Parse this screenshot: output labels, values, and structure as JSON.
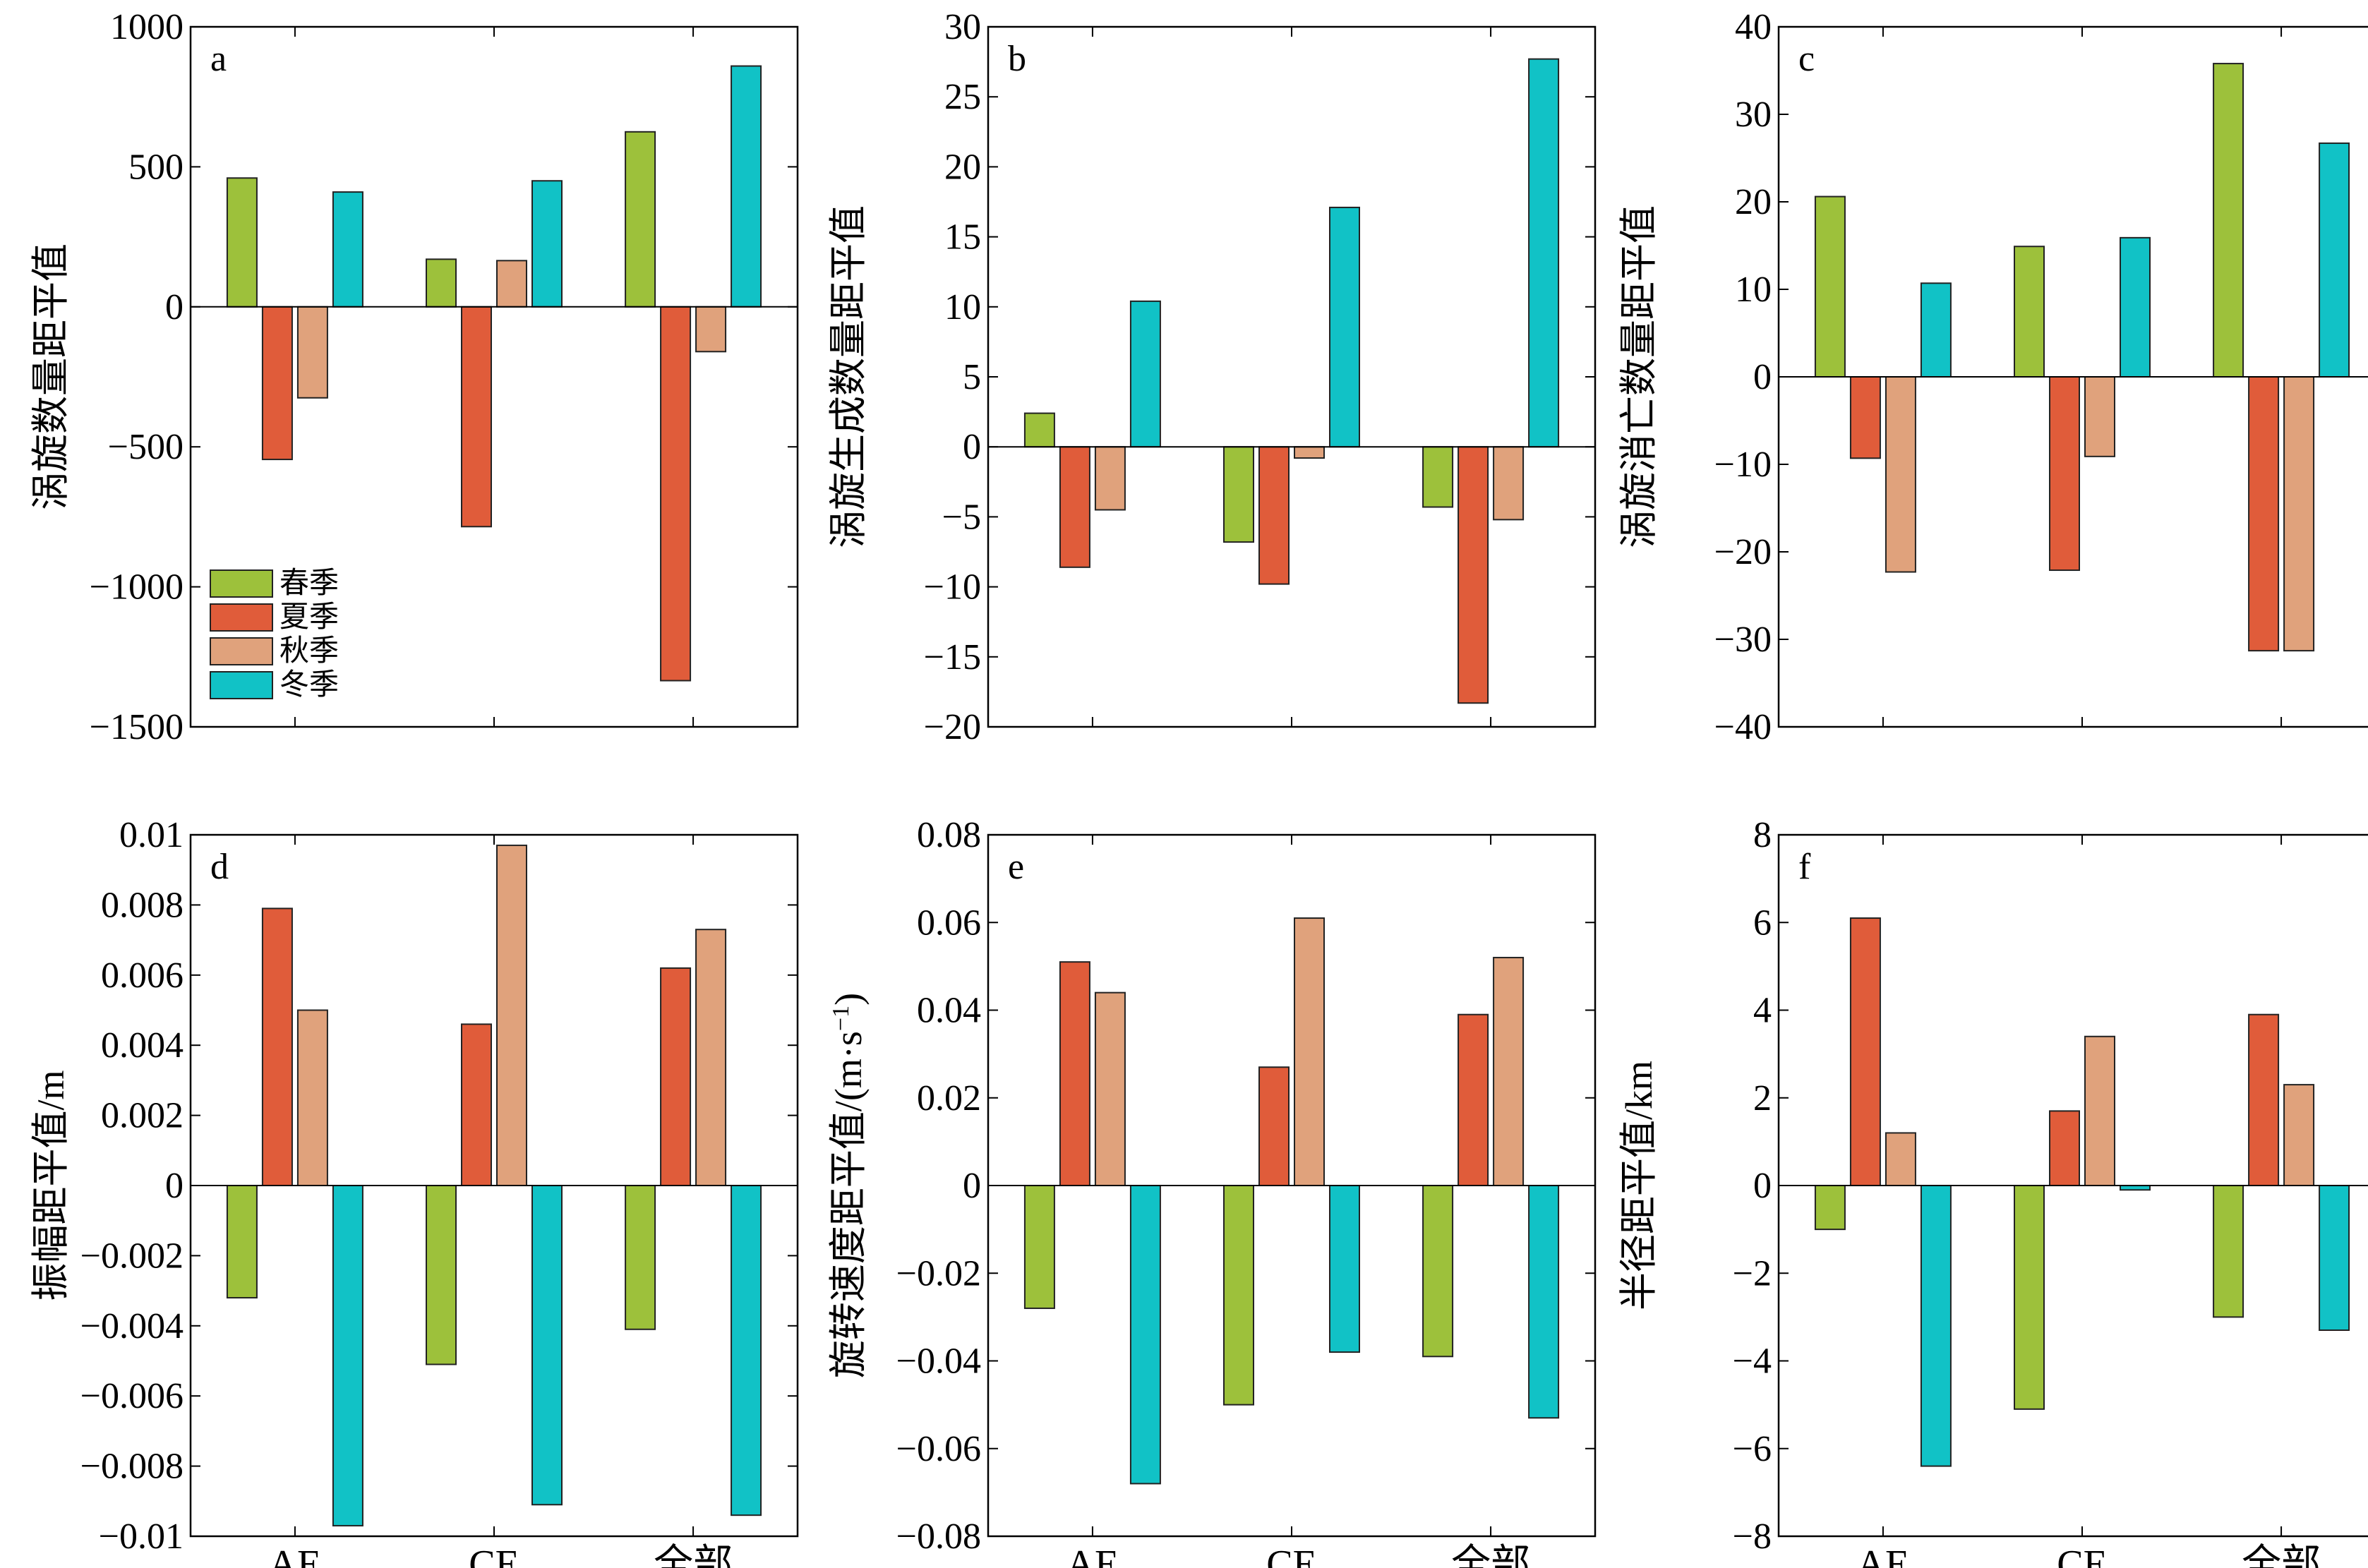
{
  "series_colors": {
    "春季": "#9dc13b",
    "夏季": "#e05c3a",
    "秋季": "#e0a27c",
    "冬季": "#11c2c6"
  },
  "categories": [
    "AE",
    "CE",
    "全部"
  ],
  "legend": [
    "春季",
    "夏季",
    "秋季",
    "冬季"
  ],
  "chart_data": [
    {
      "type": "bar",
      "letter": "a",
      "ylabel": "涡旋数量距平值",
      "ylim": [
        -1500,
        1000
      ],
      "yticks": [
        -1500,
        -1000,
        -500,
        0,
        500,
        1000
      ],
      "ytick_labels": [
        "−1500",
        "−1000",
        "−500",
        "0",
        "500",
        "1000"
      ],
      "categories": [
        "AE",
        "CE",
        "全部"
      ],
      "show_xlabels": false,
      "legend": true,
      "series": [
        {
          "name": "春季",
          "values": [
            460,
            170,
            625
          ]
        },
        {
          "name": "夏季",
          "values": [
            -545,
            -785,
            -1335
          ]
        },
        {
          "name": "秋季",
          "values": [
            -325,
            165,
            -160
          ]
        },
        {
          "name": "冬季",
          "values": [
            410,
            450,
            860
          ]
        }
      ]
    },
    {
      "type": "bar",
      "letter": "b",
      "ylabel": "涡旋生成数量距平值",
      "ylim": [
        -20,
        30
      ],
      "yticks": [
        -20,
        -15,
        -10,
        -5,
        0,
        5,
        10,
        15,
        20,
        25,
        30
      ],
      "ytick_labels": [
        "−20",
        "−15",
        "−10",
        "−5",
        "0",
        "5",
        "10",
        "15",
        "20",
        "25",
        "30"
      ],
      "categories": [
        "AE",
        "CE",
        "全部"
      ],
      "show_xlabels": false,
      "legend": false,
      "series": [
        {
          "name": "春季",
          "values": [
            2.4,
            -6.8,
            -4.3
          ]
        },
        {
          "name": "夏季",
          "values": [
            -8.6,
            -9.8,
            -18.3
          ]
        },
        {
          "name": "秋季",
          "values": [
            -4.5,
            -0.8,
            -5.2
          ]
        },
        {
          "name": "冬季",
          "values": [
            10.4,
            17.1,
            27.7
          ]
        }
      ]
    },
    {
      "type": "bar",
      "letter": "c",
      "ylabel": "涡旋消亡数量距平值",
      "ylim": [
        -40,
        40
      ],
      "yticks": [
        -40,
        -30,
        -20,
        -10,
        0,
        10,
        20,
        30,
        40
      ],
      "ytick_labels": [
        "−40",
        "−30",
        "−20",
        "−10",
        "0",
        "10",
        "20",
        "30",
        "40"
      ],
      "categories": [
        "AE",
        "CE",
        "全部"
      ],
      "show_xlabels": false,
      "legend": false,
      "series": [
        {
          "name": "春季",
          "values": [
            20.6,
            14.9,
            35.8
          ]
        },
        {
          "name": "夏季",
          "values": [
            -9.3,
            -22.1,
            -31.3
          ]
        },
        {
          "name": "秋季",
          "values": [
            -22.3,
            -9.1,
            -31.3
          ]
        },
        {
          "name": "冬季",
          "values": [
            10.7,
            15.9,
            26.7
          ]
        }
      ]
    },
    {
      "type": "bar",
      "letter": "d",
      "ylabel": "振幅距平值/m",
      "ylim": [
        -0.01,
        0.01
      ],
      "yticks": [
        -0.01,
        -0.008,
        -0.006,
        -0.004,
        -0.002,
        0,
        0.002,
        0.004,
        0.006,
        0.008,
        0.01
      ],
      "ytick_labels": [
        "−0.01",
        "−0.008",
        "−0.006",
        "−0.004",
        "−0.002",
        "0",
        "0.002",
        "0.004",
        "0.006",
        "0.008",
        "0.01"
      ],
      "categories": [
        "AE",
        "CE",
        "全部"
      ],
      "show_xlabels": true,
      "legend": false,
      "series": [
        {
          "name": "春季",
          "values": [
            -0.0032,
            -0.0051,
            -0.0041
          ]
        },
        {
          "name": "夏季",
          "values": [
            0.0079,
            0.0046,
            0.0062
          ]
        },
        {
          "name": "秋季",
          "values": [
            0.005,
            0.0097,
            0.0073
          ]
        },
        {
          "name": "冬季",
          "values": [
            -0.0097,
            -0.0091,
            -0.0094
          ]
        }
      ]
    },
    {
      "type": "bar",
      "letter": "e",
      "ylabel": "旋转速度距平值/(m·s",
      "ylabel_sup": "−1",
      "ylabel_end": ")",
      "ylim": [
        -0.08,
        0.08
      ],
      "yticks": [
        -0.08,
        -0.06,
        -0.04,
        -0.02,
        0,
        0.02,
        0.04,
        0.06,
        0.08
      ],
      "ytick_labels": [
        "−0.08",
        "−0.06",
        "−0.04",
        "−0.02",
        "0",
        "0.02",
        "0.04",
        "0.06",
        "0.08"
      ],
      "categories": [
        "AE",
        "CE",
        "全部"
      ],
      "show_xlabels": true,
      "legend": false,
      "series": [
        {
          "name": "春季",
          "values": [
            -0.028,
            -0.05,
            -0.039
          ]
        },
        {
          "name": "夏季",
          "values": [
            0.051,
            0.027,
            0.039
          ]
        },
        {
          "name": "秋季",
          "values": [
            0.044,
            0.061,
            0.052
          ]
        },
        {
          "name": "冬季",
          "values": [
            -0.068,
            -0.038,
            -0.053
          ]
        }
      ]
    },
    {
      "type": "bar",
      "letter": "f",
      "ylabel": "半径距平值/km",
      "ylim": [
        -8,
        8
      ],
      "yticks": [
        -8,
        -6,
        -4,
        -2,
        0,
        2,
        4,
        6,
        8
      ],
      "ytick_labels": [
        "−8",
        "−6",
        "−4",
        "−2",
        "0",
        "2",
        "4",
        "6",
        "8"
      ],
      "categories": [
        "AE",
        "CE",
        "全部"
      ],
      "show_xlabels": true,
      "legend": false,
      "series": [
        {
          "name": "春季",
          "values": [
            -1.0,
            -5.1,
            -3.0
          ]
        },
        {
          "name": "夏季",
          "values": [
            6.1,
            1.7,
            3.9
          ]
        },
        {
          "name": "秋季",
          "values": [
            1.2,
            3.4,
            2.3
          ]
        },
        {
          "name": "冬季",
          "values": [
            -6.4,
            -0.1,
            -3.3
          ]
        }
      ]
    }
  ]
}
